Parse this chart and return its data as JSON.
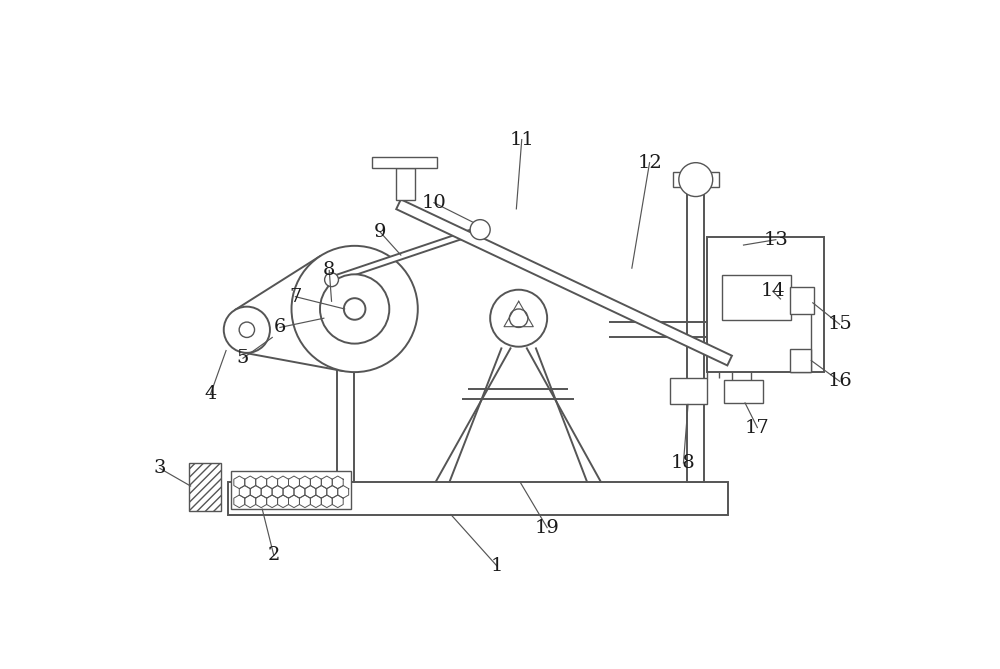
{
  "bg_color": "#ffffff",
  "line_color": "#555555",
  "label_color": "#1a1a1a",
  "fig_width": 10.0,
  "fig_height": 6.69,
  "dpi": 100
}
